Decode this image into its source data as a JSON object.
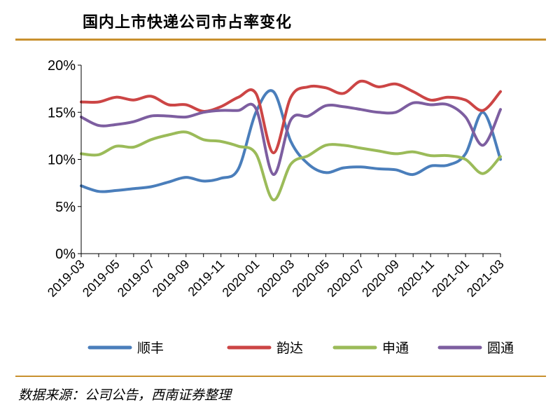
{
  "page": {
    "title": "国内上市快递公司市占率变化",
    "source": "数据来源：公司公告，西南证券整理"
  },
  "chart_data": {
    "type": "line",
    "title": "国内上市快递公司市占率变化",
    "xlabel": "",
    "ylabel": "",
    "x": [
      "2019-03",
      "2019-04",
      "2019-05",
      "2019-06",
      "2019-07",
      "2019-08",
      "2019-09",
      "2019-10",
      "2019-11",
      "2019-12",
      "2020-01",
      "2020-02",
      "2020-03",
      "2020-04",
      "2020-05",
      "2020-06",
      "2020-07",
      "2020-08",
      "2020-09",
      "2020-10",
      "2020-11",
      "2020-12",
      "2021-01",
      "2021-02",
      "2021-03"
    ],
    "x_tick_labels": [
      "2019-03",
      "2019-05",
      "2019-07",
      "2019-09",
      "2019-11",
      "2020-01",
      "2020-03",
      "2020-05",
      "2020-07",
      "2020-09",
      "2020-11",
      "2021-01",
      "2021-03"
    ],
    "y_ticks": [
      "0%",
      "5%",
      "10%",
      "15%",
      "20%"
    ],
    "ylim": [
      0,
      20
    ],
    "grid": false,
    "legend_position": "bottom",
    "series": [
      {
        "name": "顺丰",
        "color": "#4a7ebb",
        "values": [
          7.2,
          6.6,
          6.7,
          6.9,
          7.1,
          7.6,
          8.1,
          7.7,
          8.0,
          9.0,
          15.0,
          17.2,
          11.9,
          9.5,
          8.6,
          9.1,
          9.2,
          9.0,
          8.9,
          8.4,
          9.3,
          9.4,
          10.6,
          15.0,
          10.0
        ]
      },
      {
        "name": "韵达",
        "color": "#cc4545",
        "values": [
          16.1,
          16.1,
          16.6,
          16.3,
          16.7,
          15.8,
          15.8,
          15.1,
          15.6,
          16.6,
          17.0,
          10.7,
          16.6,
          17.7,
          17.6,
          17.0,
          18.3,
          17.7,
          18.0,
          17.2,
          16.3,
          16.6,
          16.3,
          15.2,
          17.2
        ]
      },
      {
        "name": "申通",
        "color": "#9bbb59",
        "values": [
          10.6,
          10.5,
          11.4,
          11.3,
          12.1,
          12.6,
          12.9,
          12.1,
          11.9,
          11.4,
          10.6,
          5.7,
          9.5,
          10.4,
          11.5,
          11.5,
          11.2,
          10.9,
          10.6,
          10.8,
          10.4,
          10.4,
          10.0,
          8.5,
          10.3
        ]
      },
      {
        "name": "圆通",
        "color": "#7d5ea0",
        "values": [
          14.5,
          13.6,
          13.7,
          14.0,
          14.6,
          14.6,
          14.5,
          15.0,
          15.2,
          15.2,
          15.4,
          8.4,
          14.2,
          14.6,
          15.7,
          15.6,
          15.3,
          15.0,
          15.0,
          16.0,
          15.8,
          15.8,
          14.5,
          11.5,
          15.3
        ]
      }
    ]
  }
}
